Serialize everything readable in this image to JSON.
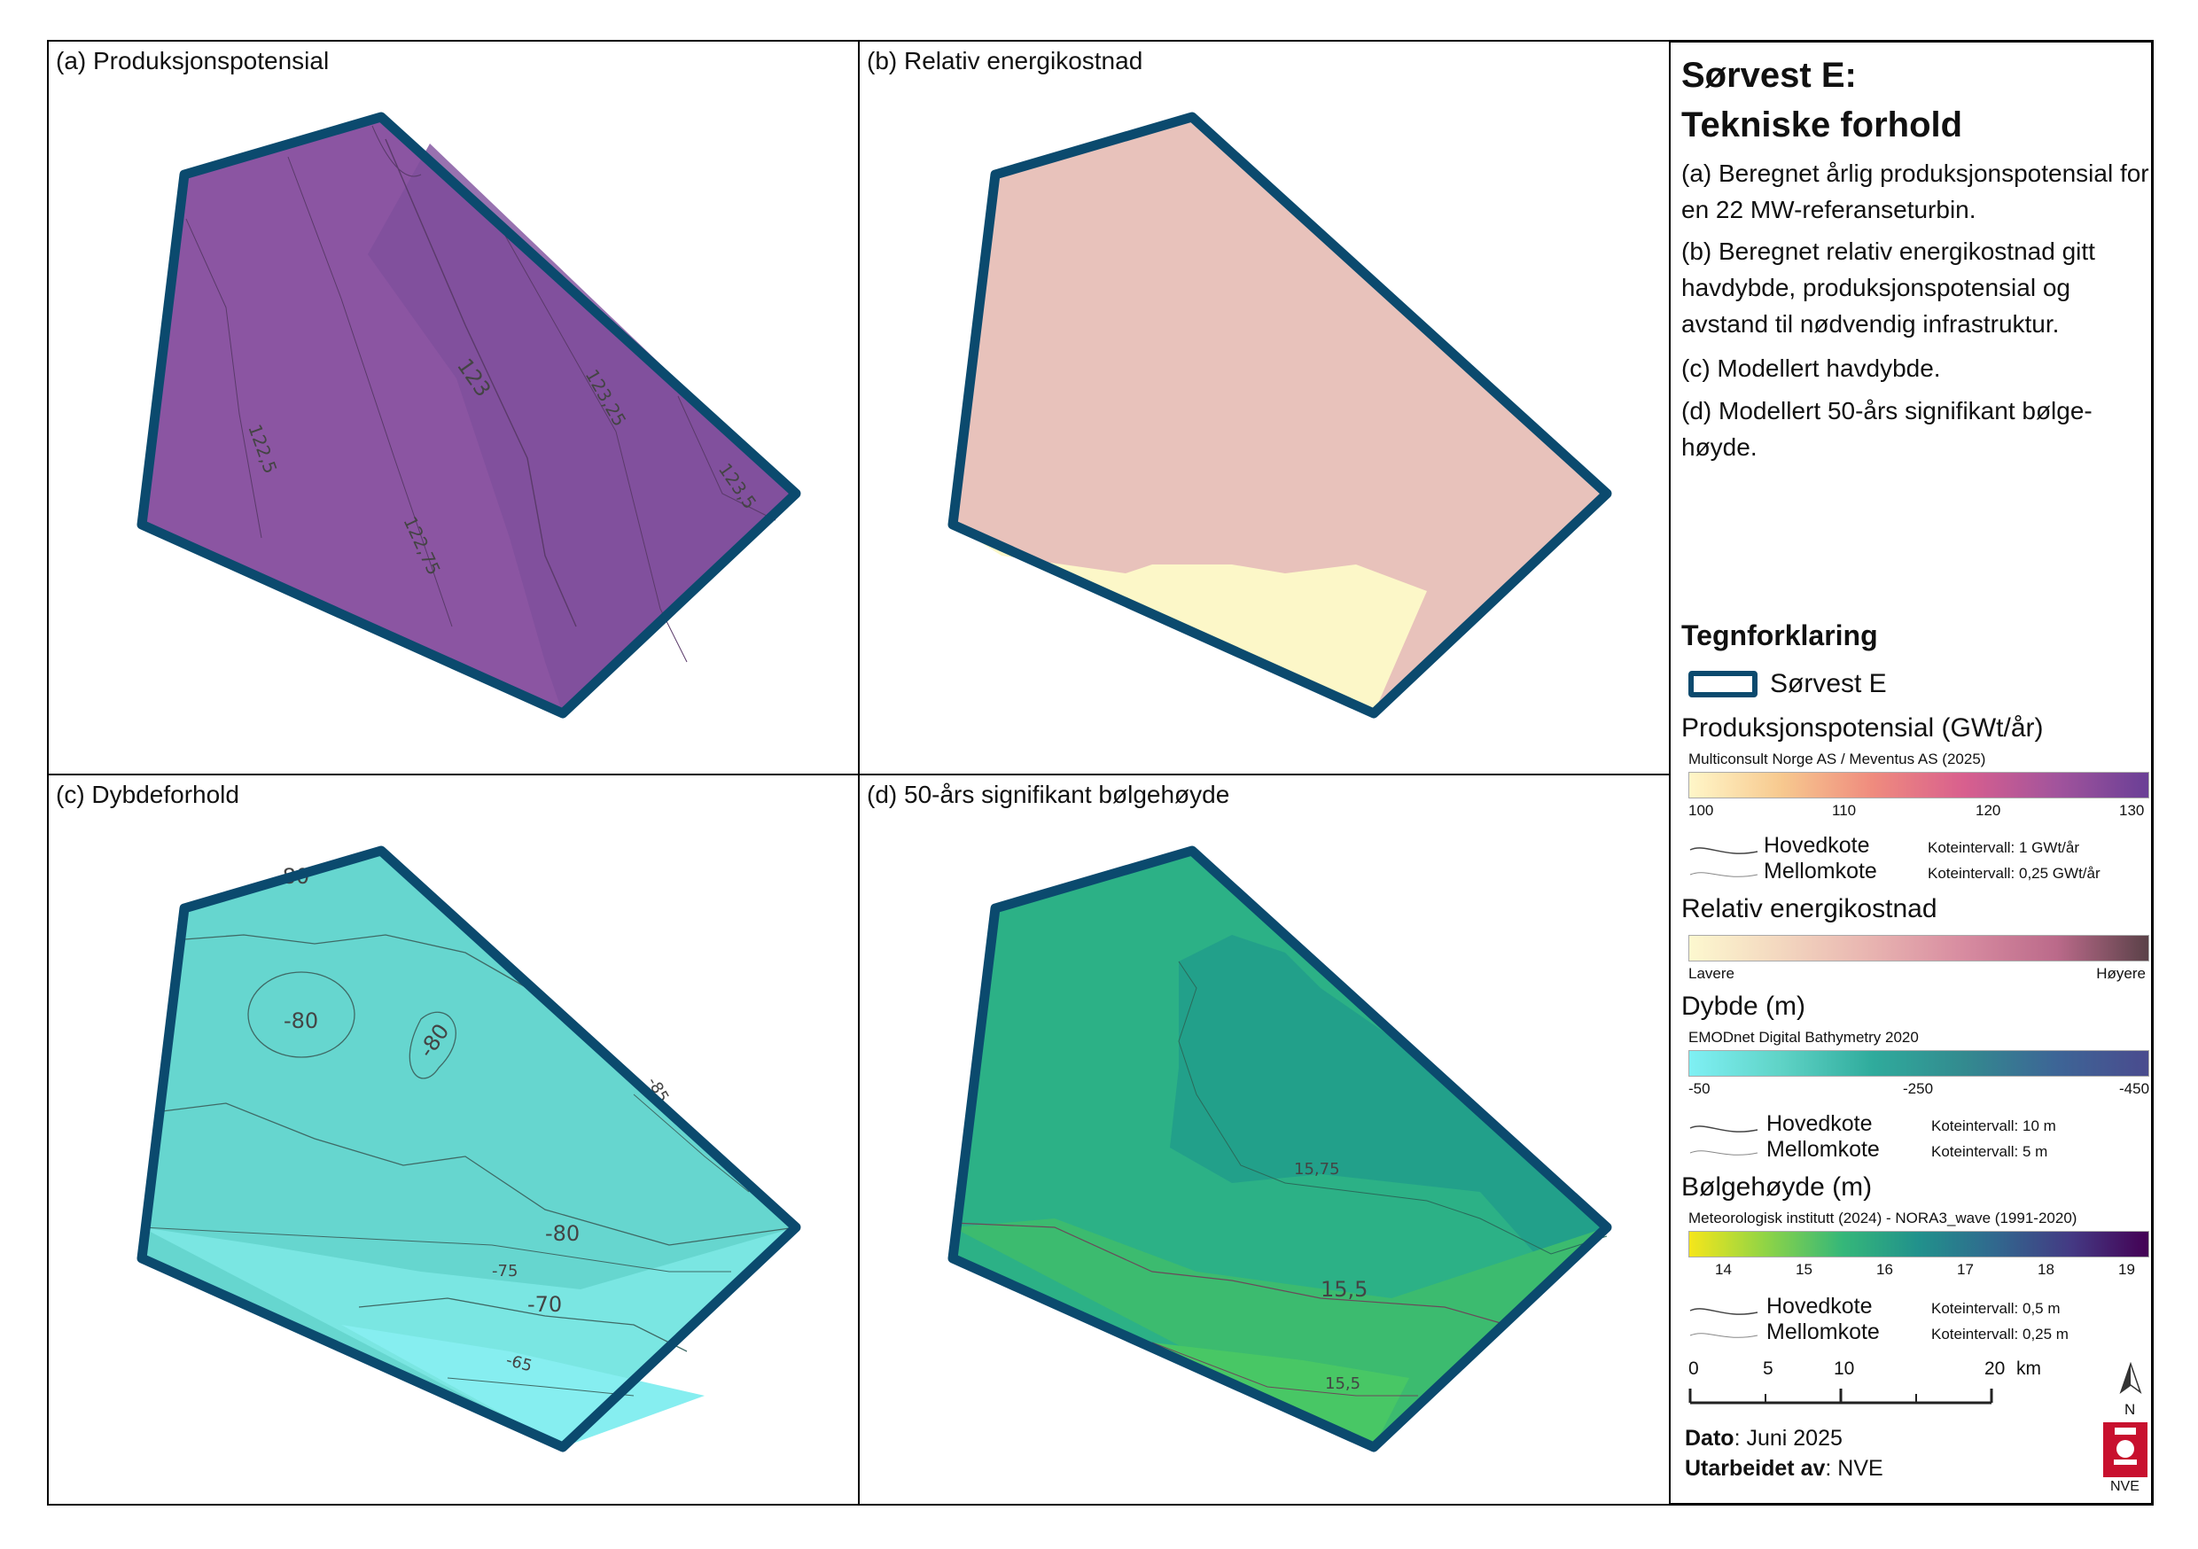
{
  "panels": {
    "a": {
      "title": "(a) Produksjonspotensial",
      "contours": [
        "122,5",
        "122,75",
        "123",
        "123,25",
        "123,5"
      ]
    },
    "b": {
      "title": "(b) Relativ energikostnad"
    },
    "c": {
      "title": "(c) Dybdeforhold",
      "contours": [
        "-80",
        "-80",
        "-80",
        "-85",
        "-80",
        "-75",
        "-70",
        "-65"
      ]
    },
    "d": {
      "title": "(d) 50-års signifikant bølgehøyde",
      "contours": [
        "15,75",
        "15,5",
        "15,5"
      ]
    }
  },
  "legend": {
    "title_line1": "Sørvest E:",
    "title_line2": "Tekniske forhold",
    "desc": [
      "(a) Beregnet årlig produksjonspotensial for en 22 MW-referanseturbin.",
      "(b) Beregnet relativ energikostnad gitt havdybde, produksjonspotensial og avstand til nødvendig infrastruktur.",
      "(c) Modellert havdybde.",
      "(d) Modellert 50-års signifikant bølge-høyde."
    ],
    "heading": "Tegnforklaring",
    "area_label": "Sørvest E",
    "area_color": "#0b4a6e",
    "prod": {
      "title": "Produksjonspotensial (GWt/år)",
      "source": "Multiconsult Norge AS / Meventus AS (2025)",
      "ticks": [
        "100",
        "110",
        "120",
        "130"
      ],
      "hoved": "Hovedkote",
      "hoved_int": "Koteintervall: 1 GWt/år",
      "mellom": "Mellomkote",
      "mellom_int": "Koteintervall: 0,25 GWt/år"
    },
    "cost": {
      "title": "Relativ energikostnad",
      "low": "Lavere",
      "high": "Høyere"
    },
    "depth": {
      "title": "Dybde (m)",
      "source": "EMODnet Digital Bathymetry 2020",
      "ticks": [
        "-50",
        "-250",
        "-450"
      ],
      "hoved": "Hovedkote",
      "hoved_int": "Koteintervall: 10 m",
      "mellom": "Mellomkote",
      "mellom_int": "Koteintervall: 5 m"
    },
    "wave": {
      "title": "Bølgehøyde (m)",
      "source": "Meteorologisk institutt (2024) - NORA3_wave (1991-2020)",
      "ticks": [
        "14",
        "15",
        "16",
        "17",
        "18",
        "19"
      ],
      "hoved": "Hovedkote",
      "hoved_int": "Koteintervall: 0,5 m",
      "mellom": "Mellomkote",
      "mellom_int": "Koteintervall: 0,25 m"
    },
    "scale": {
      "ticks": [
        "0",
        "5",
        "10",
        "20"
      ],
      "unit": "km"
    },
    "north": "N",
    "date_label": "Dato",
    "date_value": ": Juni 2025",
    "by_label": "Utarbeidet av",
    "by_value": ": NVE",
    "logo_text": "NVE"
  }
}
